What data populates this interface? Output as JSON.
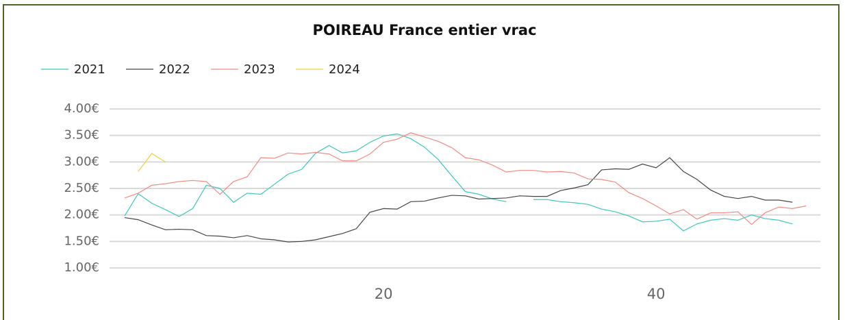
{
  "chart_data": {
    "type": "line",
    "title": "POIREAU France entier vrac",
    "x": [
      1,
      2,
      3,
      4,
      5,
      6,
      7,
      8,
      9,
      10,
      11,
      12,
      13,
      14,
      15,
      16,
      17,
      18,
      19,
      20,
      21,
      22,
      23,
      24,
      25,
      26,
      27,
      28,
      29,
      30,
      31,
      32,
      33,
      34,
      35,
      36,
      37,
      38,
      39,
      40,
      41,
      42,
      43,
      44,
      45,
      46,
      47,
      48,
      49,
      50,
      51
    ],
    "series": [
      {
        "name": "2021",
        "color": "#3cc7bf",
        "values": [
          1.98,
          2.4,
          2.22,
          2.1,
          1.97,
          2.12,
          2.56,
          2.5,
          2.24,
          2.41,
          2.39,
          2.58,
          2.77,
          2.86,
          3.16,
          3.31,
          3.17,
          3.21,
          3.37,
          3.49,
          3.53,
          3.44,
          3.28,
          3.05,
          2.74,
          2.44,
          2.39,
          2.3,
          2.25,
          null,
          2.29,
          2.29,
          2.25,
          2.23,
          2.2,
          2.11,
          2.06,
          1.98,
          1.87,
          1.88,
          1.92,
          1.7,
          1.83,
          1.9,
          1.93,
          1.9,
          2.0,
          1.93,
          1.9,
          1.83,
          null
        ]
      },
      {
        "name": "2022",
        "color": "#444444",
        "values": [
          1.95,
          1.91,
          1.81,
          1.72,
          1.73,
          1.72,
          1.61,
          1.6,
          1.57,
          1.61,
          1.55,
          1.53,
          1.49,
          1.5,
          1.53,
          1.59,
          1.65,
          1.74,
          2.05,
          2.12,
          2.11,
          2.25,
          2.26,
          2.32,
          2.37,
          2.36,
          2.3,
          2.31,
          2.32,
          2.36,
          2.35,
          2.35,
          2.46,
          2.51,
          2.57,
          2.85,
          2.87,
          2.86,
          2.96,
          2.89,
          3.08,
          2.82,
          2.67,
          2.47,
          2.35,
          2.31,
          2.35,
          2.28,
          2.28,
          2.24,
          null
        ]
      },
      {
        "name": "2023",
        "color": "#f28b82",
        "values": [
          2.32,
          2.41,
          2.56,
          2.59,
          2.63,
          2.65,
          2.63,
          2.39,
          2.63,
          2.72,
          3.08,
          3.07,
          3.17,
          3.15,
          3.18,
          3.15,
          3.02,
          3.02,
          3.15,
          3.37,
          3.43,
          3.55,
          3.47,
          3.39,
          3.27,
          3.08,
          3.04,
          2.94,
          2.81,
          2.84,
          2.84,
          2.81,
          2.82,
          2.79,
          2.68,
          2.67,
          2.62,
          2.42,
          2.31,
          2.17,
          2.02,
          2.1,
          1.92,
          2.04,
          2.04,
          2.06,
          1.82,
          2.04,
          2.15,
          2.12,
          2.17
        ]
      },
      {
        "name": "2024",
        "color": "#f0cf3c",
        "values": [
          null,
          2.82,
          3.16,
          3.0,
          null,
          null,
          null,
          null,
          null,
          null,
          null,
          null,
          null,
          null,
          null,
          null,
          null,
          null,
          null,
          null,
          null,
          null,
          null,
          null,
          null,
          null,
          null,
          null,
          null,
          null,
          null,
          null,
          null,
          null,
          null,
          null,
          null,
          null,
          null,
          null,
          null,
          null,
          null,
          null,
          null,
          null,
          null,
          null,
          null,
          null,
          null
        ]
      }
    ],
    "xlim": [
      0,
      52
    ],
    "xticks": [
      20,
      40
    ],
    "ylim": [
      1,
      4
    ],
    "yticks": [
      {
        "value": 1,
        "label": "1.00€"
      },
      {
        "value": 1.5,
        "label": "1.50€"
      },
      {
        "value": 2,
        "label": "2.00€"
      },
      {
        "value": 2.5,
        "label": "2.50€"
      },
      {
        "value": 3,
        "label": "3.00€"
      },
      {
        "value": 3.5,
        "label": "3.50€"
      },
      {
        "value": 4,
        "label": "4.00€"
      }
    ],
    "grid": true
  }
}
